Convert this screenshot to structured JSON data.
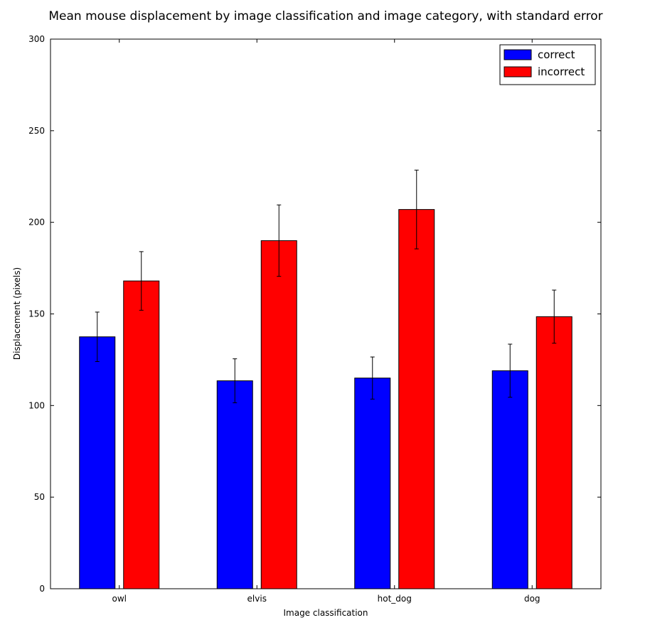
{
  "chart_data": {
    "type": "bar",
    "title": "Mean mouse displacement by image classification and image category, with standard error",
    "xlabel": "Image classification",
    "ylabel": "Displacement (pixels)",
    "categories": [
      "owl",
      "elvis",
      "hot_dog",
      "dog"
    ],
    "series": [
      {
        "name": "correct",
        "color": "#0000ff",
        "values": [
          137.5,
          113.5,
          115,
          119
        ],
        "errors": [
          13.5,
          12,
          11.5,
          14.5
        ]
      },
      {
        "name": "incorrect",
        "color": "#ff0000",
        "values": [
          168,
          190,
          207,
          148.5
        ],
        "errors": [
          16,
          19.5,
          21.5,
          14.5
        ]
      }
    ],
    "ylim": [
      0,
      300
    ],
    "yticks": [
      0,
      50,
      100,
      150,
      200,
      250,
      300
    ],
    "grid": false,
    "legend_position": "top-right"
  }
}
